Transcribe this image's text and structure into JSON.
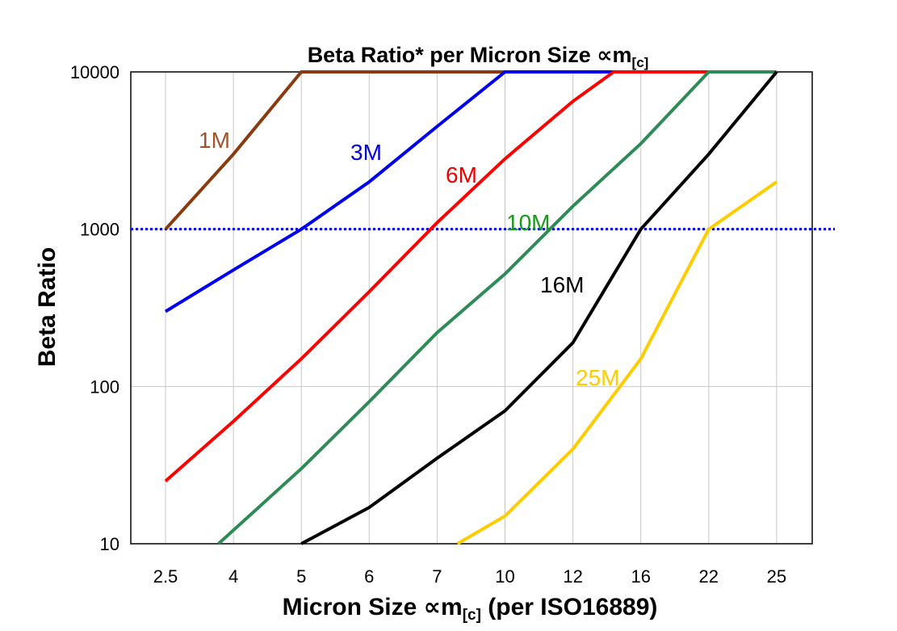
{
  "chart_data": {
    "type": "line",
    "title_main": "Beta Ratio* per Micron Size ",
    "title_symbol": "∝",
    "title_m": "m",
    "title_sub": "[c]",
    "xlabel_main": "Micron Size ",
    "xlabel_symbol": "∝",
    "xlabel_m": "m",
    "xlabel_sub": "[c]",
    "xlabel_tail": " (per ISO16889)",
    "ylabel": "Beta Ratio",
    "categories": [
      "2.5",
      "4",
      "5",
      "6",
      "7",
      "10",
      "12",
      "16",
      "22",
      "25"
    ],
    "y_scale": "log",
    "ylim": [
      10,
      10000
    ],
    "yticks": [
      "10000",
      "1000",
      "100",
      "10"
    ],
    "grid": true,
    "reference_line": {
      "value": 1000,
      "color": "#0000cc",
      "style": "dotted"
    },
    "series": [
      {
        "name": "1M",
        "color": "#8b3a0f",
        "label_color": "#a0522d",
        "points": [
          [
            0,
            1000
          ],
          [
            1,
            3000
          ],
          [
            2,
            10000
          ],
          [
            5,
            10000
          ]
        ]
      },
      {
        "name": "3M",
        "color": "#0000ee",
        "label_color": "#0000dd",
        "points": [
          [
            0,
            300
          ],
          [
            1,
            550
          ],
          [
            2,
            1000
          ],
          [
            3,
            2000
          ],
          [
            4,
            4500
          ],
          [
            5,
            10000
          ],
          [
            8,
            10000
          ]
        ]
      },
      {
        "name": "6M",
        "color": "#ff0000",
        "label_color": "#ee0000",
        "points": [
          [
            0,
            25
          ],
          [
            1,
            60
          ],
          [
            2,
            150
          ],
          [
            3,
            400
          ],
          [
            4,
            1100
          ],
          [
            5,
            2800
          ],
          [
            6,
            6500
          ],
          [
            6.6,
            10000
          ],
          [
            8,
            10000
          ]
        ]
      },
      {
        "name": "10M",
        "color": "#2e8b57",
        "label_color": "#1a9a1a",
        "points": [
          [
            0.78,
            10
          ],
          [
            2,
            30
          ],
          [
            3,
            80
          ],
          [
            4,
            220
          ],
          [
            5,
            520
          ],
          [
            6,
            1400
          ],
          [
            7,
            3500
          ],
          [
            8,
            10000
          ],
          [
            9,
            10000
          ]
        ]
      },
      {
        "name": "16M",
        "color": "#000000",
        "label_color": "#000000",
        "points": [
          [
            2,
            10
          ],
          [
            3,
            17
          ],
          [
            4,
            35
          ],
          [
            5,
            70
          ],
          [
            6,
            190
          ],
          [
            7,
            1000
          ],
          [
            8,
            3000
          ],
          [
            9,
            10000
          ]
        ]
      },
      {
        "name": "25M",
        "color": "#ffcc00",
        "label_color": "#ffcc00",
        "points": [
          [
            4.3,
            10
          ],
          [
            5,
            15
          ],
          [
            6,
            40
          ],
          [
            7,
            150
          ],
          [
            8,
            1000
          ],
          [
            9,
            2000
          ]
        ]
      }
    ]
  }
}
